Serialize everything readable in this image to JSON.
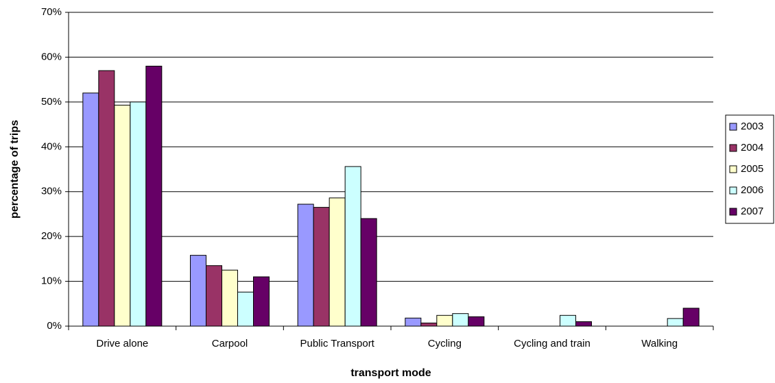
{
  "chart_data": {
    "type": "bar",
    "x_label": "transport mode",
    "y_label": "percentage of trips",
    "categories": [
      "Drive alone",
      "Carpool",
      "Public Transport",
      "Cycling",
      "Cycling and train",
      "Walking"
    ],
    "series": [
      {
        "name": "2003",
        "color": "#9999ff",
        "values": [
          52,
          15.8,
          27.2,
          1.8,
          0,
          0
        ]
      },
      {
        "name": "2004",
        "color": "#993366",
        "values": [
          57,
          13.5,
          26.5,
          0.7,
          0,
          0
        ]
      },
      {
        "name": "2005",
        "color": "#ffffcc",
        "values": [
          49.3,
          12.5,
          28.6,
          2.4,
          0,
          0
        ]
      },
      {
        "name": "2006",
        "color": "#ccffff",
        "values": [
          50,
          7.6,
          35.6,
          2.8,
          2.4,
          1.7
        ]
      },
      {
        "name": "2007",
        "color": "#660066",
        "values": [
          58,
          11,
          24,
          2.1,
          1,
          4
        ]
      }
    ],
    "ylim": [
      0,
      70
    ],
    "yticks": [
      {
        "value": 0,
        "label": "0%"
      },
      {
        "value": 10,
        "label": "10%"
      },
      {
        "value": 20,
        "label": "20%"
      },
      {
        "value": 30,
        "label": "30%"
      },
      {
        "value": 40,
        "label": "40%"
      },
      {
        "value": 50,
        "label": "50%"
      },
      {
        "value": 60,
        "label": "60%"
      },
      {
        "value": 70,
        "label": "70%"
      }
    ],
    "grid": true,
    "legend": "right"
  }
}
